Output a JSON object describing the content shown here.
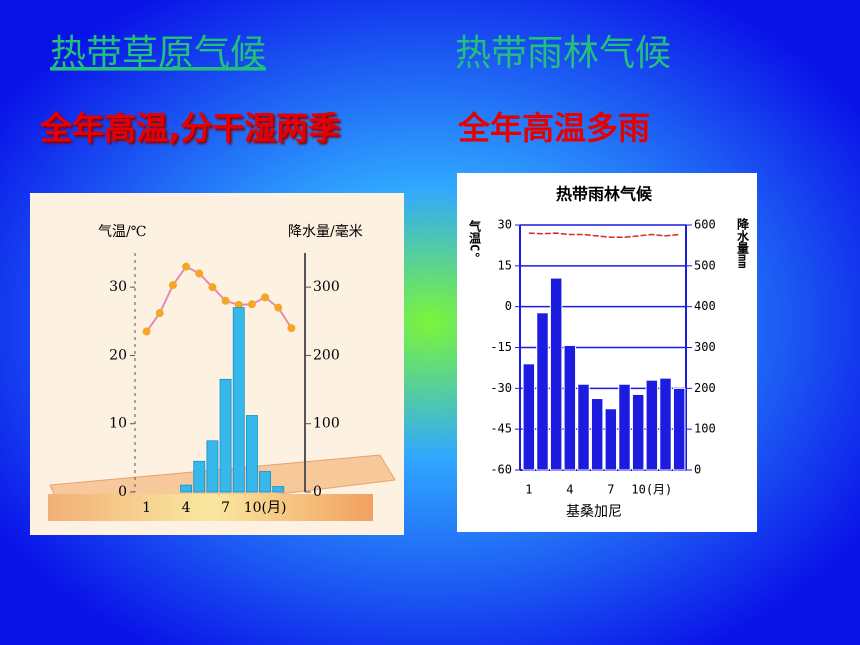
{
  "headings": [
    "热带草原气候",
    "热带雨林气候"
  ],
  "subheadings": [
    "全年高温,分干湿两季",
    "全年高温多雨"
  ],
  "chart_data": [
    {
      "type": "combo",
      "categories": [
        "1",
        null,
        null,
        "4",
        null,
        null,
        "7",
        null,
        null,
        "10(月)",
        null,
        null
      ],
      "ylabel": "气温/℃",
      "y2label": "降水量/毫米",
      "ylim": [
        0,
        35
      ],
      "yticks": [
        0,
        10,
        20,
        30
      ],
      "y2lim": [
        0,
        350
      ],
      "y2ticks": [
        0,
        100,
        200,
        300
      ],
      "grid": false,
      "series": [
        {
          "type": "line",
          "color": "#e888b8",
          "marker_color": "#f5a623",
          "markers": true,
          "values": [
            23.5,
            26.2,
            30.3,
            33,
            32,
            30,
            28,
            27.4,
            27.5,
            28.5,
            27,
            24
          ]
        },
        {
          "type": "bar",
          "axis": "y2",
          "color": "#36b8ea",
          "values": [
            0,
            0,
            0,
            10,
            45,
            75,
            165,
            270,
            112,
            30,
            8,
            0
          ]
        }
      ]
    },
    {
      "type": "combo",
      "title": "热带雨林气候",
      "xlabel": "基桑加尼",
      "categories": [
        "1",
        null,
        null,
        "4",
        null,
        null,
        "7",
        null,
        null,
        "10(月)",
        null,
        null
      ],
      "ylabel": "气温C°",
      "y2label": "降水量mm",
      "ylim": [
        -60,
        30
      ],
      "yticks": [
        30,
        15,
        0,
        -15,
        -30,
        -45,
        -60
      ],
      "y2lim": [
        0,
        600
      ],
      "y2ticks": [
        600,
        500,
        400,
        300,
        200,
        100,
        0
      ],
      "grid": true,
      "series": [
        {
          "type": "line",
          "color": "#d42a2a",
          "markers": false,
          "values": [
            27,
            26.8,
            27,
            26.5,
            26.5,
            26,
            25.5,
            25.5,
            26,
            26.5,
            26,
            26.5
          ]
        },
        {
          "type": "bar",
          "axis": "y2",
          "color": "#1c1ce0",
          "values": [
            260,
            385,
            470,
            305,
            210,
            175,
            150,
            210,
            185,
            220,
            225,
            200
          ]
        }
      ]
    }
  ]
}
